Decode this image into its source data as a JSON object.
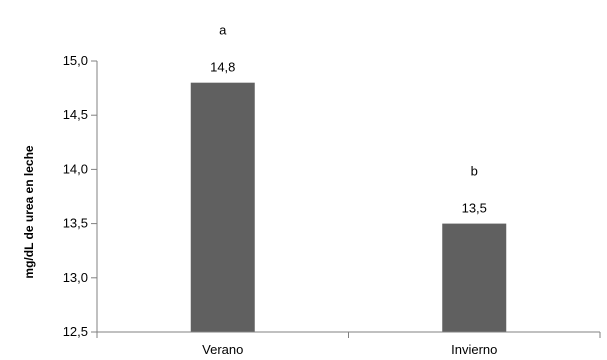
{
  "chart_data": {
    "type": "bar",
    "categories": [
      "Verano",
      "Invierno"
    ],
    "values": [
      14.8,
      13.5
    ],
    "value_labels": [
      "14,8",
      "13,5"
    ],
    "significance_letters": [
      "a",
      "b"
    ],
    "ylabel": "mg/dL de urea en leche",
    "xlabel": "",
    "ylim": [
      12.5,
      15.0
    ],
    "yticks": [
      12.5,
      13.0,
      13.5,
      14.0,
      14.5,
      15.0
    ],
    "ytick_labels": [
      "12,5",
      "13,0",
      "13,5",
      "14,0",
      "14,5",
      "15,0"
    ],
    "grid": false,
    "legend": "none",
    "bar_color": "#606060",
    "axis_color": "#808080"
  }
}
